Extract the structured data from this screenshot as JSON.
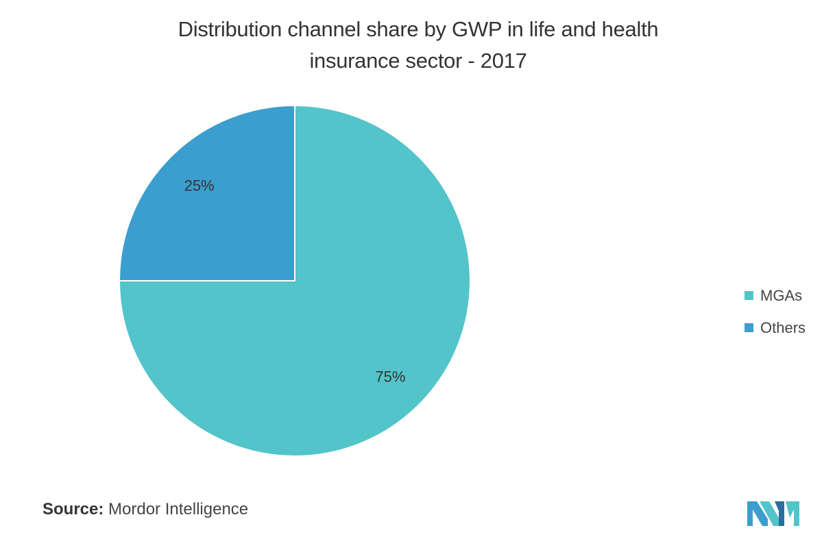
{
  "title_line1": "Distribution channel share by GWP in life and health",
  "title_line2": "insurance sector - 2017",
  "chart_data": {
    "type": "pie",
    "title": "Distribution channel share by GWP in life and health insurance sector - 2017",
    "categories": [
      "MGAs",
      "Others"
    ],
    "values": [
      75,
      25
    ],
    "labels": [
      "75%",
      "25%"
    ],
    "colors": [
      "#52C4CA",
      "#3C9ECE"
    ],
    "legend_position": "right"
  },
  "legend": [
    {
      "label": "MGAs",
      "color": "#52C4CA"
    },
    {
      "label": "Others",
      "color": "#3C9ECE"
    }
  ],
  "source_label": "Source:",
  "source_text": "Mordor Intelligence",
  "logo_icon": "mordor-intelligence-logo-icon"
}
